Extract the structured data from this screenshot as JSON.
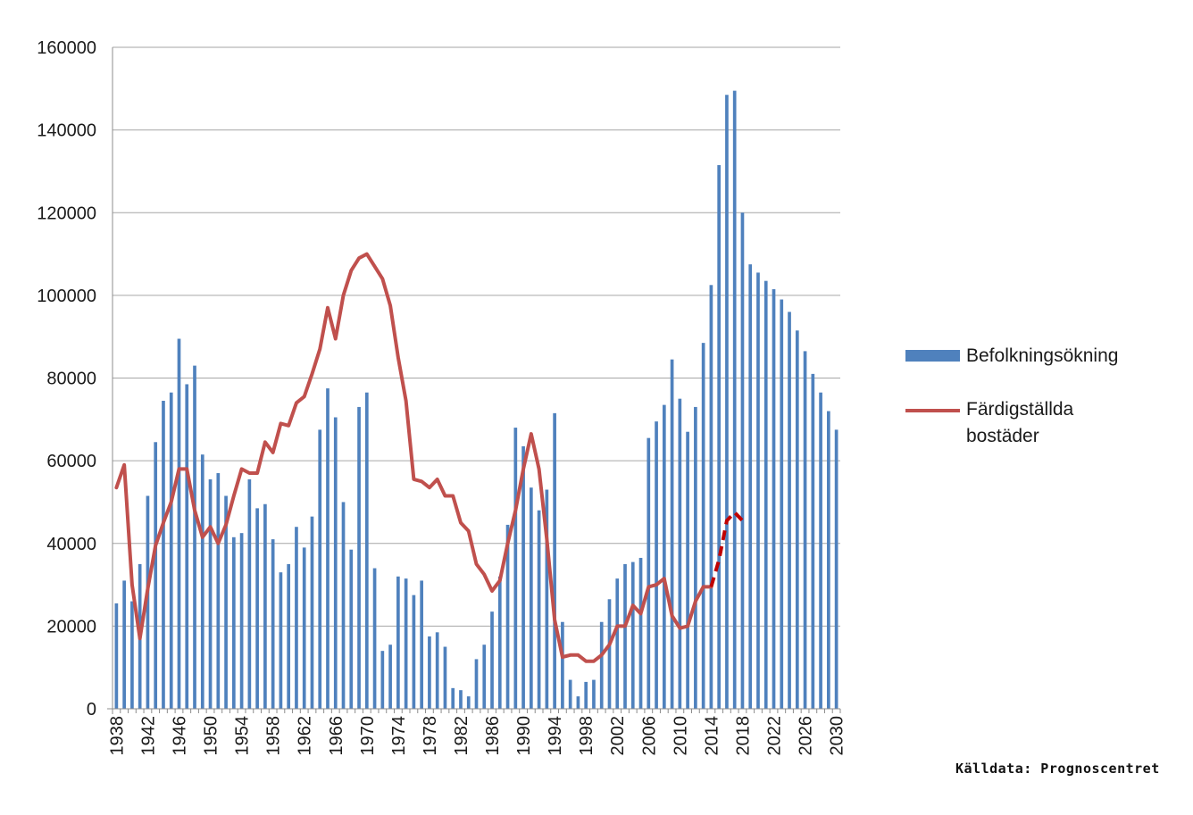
{
  "chart_data": {
    "type": "bar",
    "title": "",
    "xlabel": "",
    "ylabel": "",
    "ylim": [
      0,
      160000
    ],
    "yticks": [
      0,
      20000,
      40000,
      60000,
      80000,
      100000,
      120000,
      140000,
      160000
    ],
    "x_start": 1938,
    "x_end": 2030,
    "xticks": [
      "1938",
      "1942",
      "1946",
      "1950",
      "1954",
      "1958",
      "1962",
      "1966",
      "1970",
      "1974",
      "1978",
      "1982",
      "1986",
      "1990",
      "1994",
      "1998",
      "2002",
      "2006",
      "2010",
      "2014",
      "2018",
      "2022",
      "2026",
      "2030"
    ],
    "grid": "horizontal",
    "legend_position": "right",
    "series": [
      {
        "name": "Befolkningsökning",
        "kind": "bar",
        "color": "#4f81bd",
        "x_start": 1938,
        "values": [
          25500,
          31000,
          26000,
          35000,
          51500,
          64500,
          74500,
          76500,
          89500,
          78500,
          83000,
          61500,
          55500,
          57000,
          51500,
          41500,
          42500,
          55500,
          48500,
          49500,
          41000,
          33000,
          35000,
          44000,
          39000,
          46500,
          67500,
          77500,
          70500,
          50000,
          38500,
          73000,
          76500,
          34000,
          14000,
          15500,
          32000,
          31500,
          27500,
          31000,
          17500,
          18500,
          15000,
          5000,
          4500,
          3000,
          12000,
          15500,
          23500,
          32000,
          44500,
          68000,
          63500,
          53500,
          48000,
          53000,
          71500,
          21000,
          7000,
          3000,
          6500,
          7000,
          21000,
          26500,
          31500,
          35000,
          35500,
          36500,
          65500,
          69500,
          73500,
          84500,
          75000,
          67000,
          73000,
          88500,
          102500,
          131500,
          148500,
          149500,
          120000,
          107500,
          105500,
          103500,
          101500,
          99000,
          96000,
          91500,
          86500,
          81000,
          76500,
          72000,
          67500
        ]
      },
      {
        "name": "Färdigställda bostäder",
        "kind": "line",
        "color": "#c0504d",
        "x_start": 1938,
        "values": [
          53500,
          59000,
          30000,
          17000,
          29000,
          39500,
          45000,
          50000,
          58000,
          58000,
          48000,
          41500,
          44000,
          40000,
          44500,
          51500,
          58000,
          57000,
          57000,
          64500,
          62000,
          69000,
          68500,
          74000,
          75500,
          81000,
          87000,
          97000,
          89500,
          100000,
          106000,
          109000,
          110000,
          107000,
          104000,
          97500,
          85000,
          74500,
          55500,
          55000,
          53500,
          55500,
          51500,
          51500,
          45000,
          43000,
          35000,
          32500,
          28500,
          31000,
          40000,
          48000,
          58000,
          66500,
          58000,
          41000,
          21500,
          12500,
          13000,
          13000,
          11500,
          11500,
          13000,
          15500,
          20000,
          20000,
          25000,
          23000,
          29500,
          30000,
          31500,
          22500,
          19500,
          20000,
          26000,
          29500,
          29500
        ],
        "forecast": {
          "style": "dashed",
          "x_start": 2014,
          "values": [
            29500,
            36000,
            45500,
            47500,
            45500
          ]
        }
      }
    ]
  },
  "legend": {
    "bar_label": "Befolkningsökning",
    "line_label_1": "Färdigställda",
    "line_label_2": "bostäder"
  },
  "source_text": "Källdata: Prognoscentret"
}
